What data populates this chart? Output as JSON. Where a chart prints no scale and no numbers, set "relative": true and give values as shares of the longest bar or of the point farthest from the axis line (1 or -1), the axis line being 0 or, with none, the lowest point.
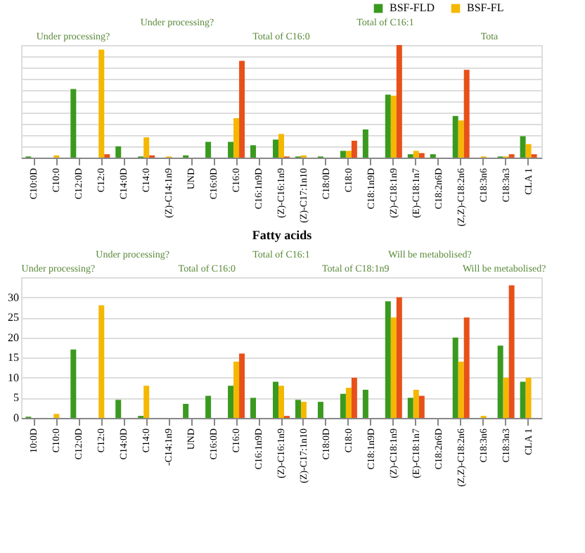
{
  "chart_data": [
    {
      "type": "bar",
      "relative": true,
      "xlabel": "Fatty acids",
      "grid": "y",
      "legend": false,
      "categories": [
        "C10:0D",
        "C10:0",
        "C12:0D",
        "C12:0",
        "C14:0D",
        "C14:0",
        "(Z)-C14:1n9",
        "UND",
        "C16:0D",
        "C16:0",
        "C16:1n9D",
        "(Z)-C16:1n9",
        "(Z)-C17:1n10",
        "C18:0D",
        "C18:0",
        "C18:1n9D",
        "(Z)-C18:1n9",
        "(E)-C18:1n7",
        "C18:2n6D",
        "(Z,Z)-C18:2n6",
        "C18:3n6",
        "C18:3n3",
        "CLA 1"
      ],
      "series": [
        {
          "color": "#3a9a1f",
          "values": [
            0.01,
            null,
            0.61,
            null,
            0.1,
            0.01,
            null,
            0.02,
            0.14,
            0.14,
            0.11,
            0.16,
            0.01,
            0.01,
            0.06,
            0.25,
            0.56,
            0.03,
            0.03,
            0.37,
            null,
            0.01,
            0.19
          ]
        },
        {
          "color": "#f5b800",
          "values": [
            null,
            0.02,
            null,
            0.96,
            null,
            0.18,
            0.01,
            null,
            null,
            0.35,
            null,
            0.21,
            0.02,
            null,
            0.06,
            null,
            0.55,
            0.06,
            null,
            0.33,
            0.01,
            0.01,
            0.12
          ]
        },
        {
          "color": "#e8501a",
          "values": [
            null,
            null,
            null,
            0.03,
            null,
            0.02,
            null,
            null,
            null,
            0.86,
            null,
            0.01,
            null,
            null,
            0.15,
            null,
            1,
            0.04,
            null,
            0.78,
            null,
            0.03,
            0.03
          ]
        }
      ],
      "annotations": [
        "Under processing?",
        "Under processing?",
        "Total of C16:0",
        "Total of C16:1",
        "Tota"
      ]
    },
    {
      "type": "bar",
      "grid": "y",
      "legend": "top right",
      "categories": [
        "10:0D",
        "C10:0",
        "C12:0D",
        "C12:0",
        "C14:0D",
        "C14:0",
        "-C14:1n9",
        "UND",
        "C16:0D",
        "C16:0",
        "C16:1n9D",
        "(Z)-C16:1n9",
        "(Z)-C17:1n10",
        "C18:0D",
        "C18:0",
        "C18:1n9D",
        "(Z)-C18:1n9",
        "(E)-C18:1n7",
        "C18:2n6D",
        "(Z,Z)-C18:2n6",
        "C18:3n6",
        "C18:3n3",
        "CLA 1"
      ],
      "ylim": [
        0,
        35
      ],
      "yticks": [
        0,
        5,
        10,
        15,
        20,
        25,
        30
      ],
      "series": [
        {
          "name": "BSF-FLD",
          "color": "#3a9a1f",
          "values": [
            0.3,
            null,
            17,
            null,
            4.5,
            0.5,
            null,
            3.5,
            5.5,
            8,
            5,
            9,
            4.5,
            4,
            6,
            7,
            29,
            5,
            null,
            20,
            null,
            18,
            9
          ]
        },
        {
          "name": "BSF-FL",
          "color": "#f5b800",
          "values": [
            null,
            1,
            null,
            28,
            null,
            8,
            null,
            null,
            null,
            14,
            null,
            8,
            4,
            null,
            7.5,
            null,
            25,
            7,
            null,
            14,
            0.5,
            10,
            10
          ]
        },
        {
          "color": "#e8501a",
          "values": [
            null,
            null,
            null,
            null,
            null,
            null,
            null,
            null,
            null,
            16,
            null,
            0.5,
            null,
            null,
            10,
            null,
            30,
            5.5,
            null,
            25,
            null,
            33,
            null
          ]
        }
      ],
      "annotations": [
        "Under processing?",
        "Under processing?",
        "Total of C16:0",
        "Total of C16:1",
        "Total of C18:1n9",
        "Will be metabolised?",
        "Will be metabolised?"
      ]
    }
  ]
}
